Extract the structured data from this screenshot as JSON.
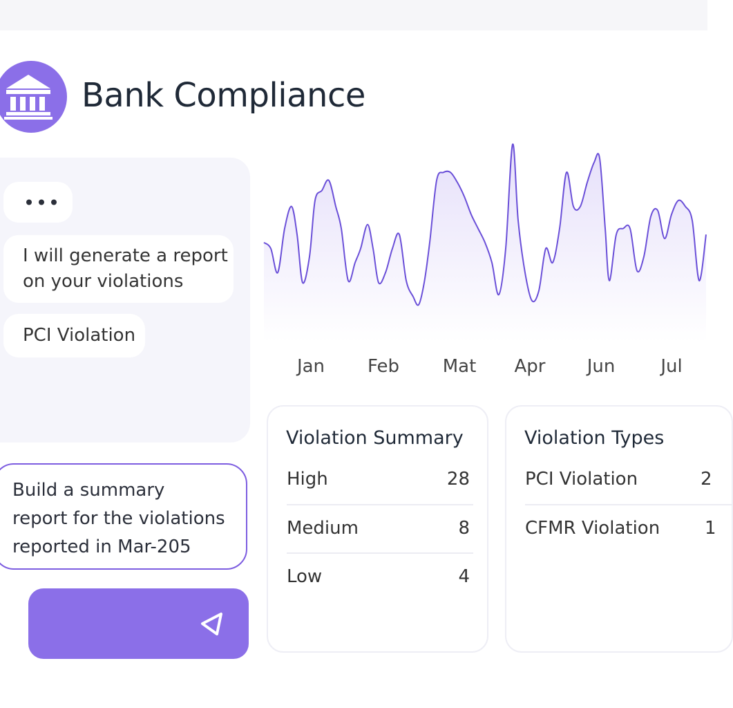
{
  "header": {
    "title": "Bank Compliance"
  },
  "chat": {
    "messages": [
      "I will generate a report on your violations",
      "PCI Violation"
    ],
    "input": "Build a summary report for the violations reported in Mar-205"
  },
  "chart_data": {
    "type": "area",
    "color": "#6a4fd8",
    "x": [
      0,
      1,
      2,
      3,
      4,
      4.8,
      5.6,
      6.6,
      7.4,
      8.4,
      9.4,
      10.4,
      11.2,
      12.2,
      13.2,
      14,
      15,
      15.8,
      16.6,
      17.6,
      18.6,
      19.6,
      20.6,
      21.6,
      22.4,
      23.2,
      24,
      25,
      26,
      27,
      28,
      29,
      30,
      31,
      32,
      33,
      34,
      35,
      36,
      36.8,
      37.8,
      38.8,
      39.8,
      40.8,
      41.8,
      42.8,
      43.8,
      44.8,
      45.8,
      46.8,
      47.8,
      48.6,
      49.4,
      50,
      51,
      52,
      53,
      54,
      55,
      56,
      57,
      58,
      59,
      60,
      61,
      62,
      63,
      64
    ],
    "values": [
      48,
      45,
      33,
      55,
      66,
      52,
      28,
      41,
      69,
      74,
      79,
      66,
      55,
      29,
      38,
      45,
      57,
      45,
      28,
      33,
      45,
      52,
      29,
      21,
      17,
      28,
      48,
      79,
      83,
      83,
      78,
      71,
      62,
      55,
      48,
      38,
      22,
      45,
      97,
      59,
      33,
      19,
      24,
      45,
      38,
      55,
      83,
      66,
      66,
      78,
      88,
      90,
      55,
      29,
      52,
      55,
      55,
      34,
      41,
      61,
      64,
      50,
      62,
      69,
      66,
      59,
      29,
      52
    ],
    "xlim": [
      0,
      64.2
    ],
    "ylim": [
      0,
      100
    ],
    "xticks": [
      {
        "value": 6.8,
        "label": "Jan"
      },
      {
        "value": 17.3,
        "label": "Feb"
      },
      {
        "value": 28.3,
        "label": "Mat"
      },
      {
        "value": 38.5,
        "label": "Apr"
      },
      {
        "value": 48.8,
        "label": "Jun"
      },
      {
        "value": 59,
        "label": "Jul"
      }
    ]
  },
  "cards": [
    {
      "title": "Violation Summary",
      "rows": [
        [
          "High",
          28
        ],
        [
          "Medium",
          8
        ],
        [
          "Low",
          4
        ]
      ]
    },
    {
      "title": "Violation Types",
      "rows": [
        [
          "PCI Violation",
          2
        ],
        [
          "CFMR Violation",
          1
        ]
      ]
    }
  ]
}
